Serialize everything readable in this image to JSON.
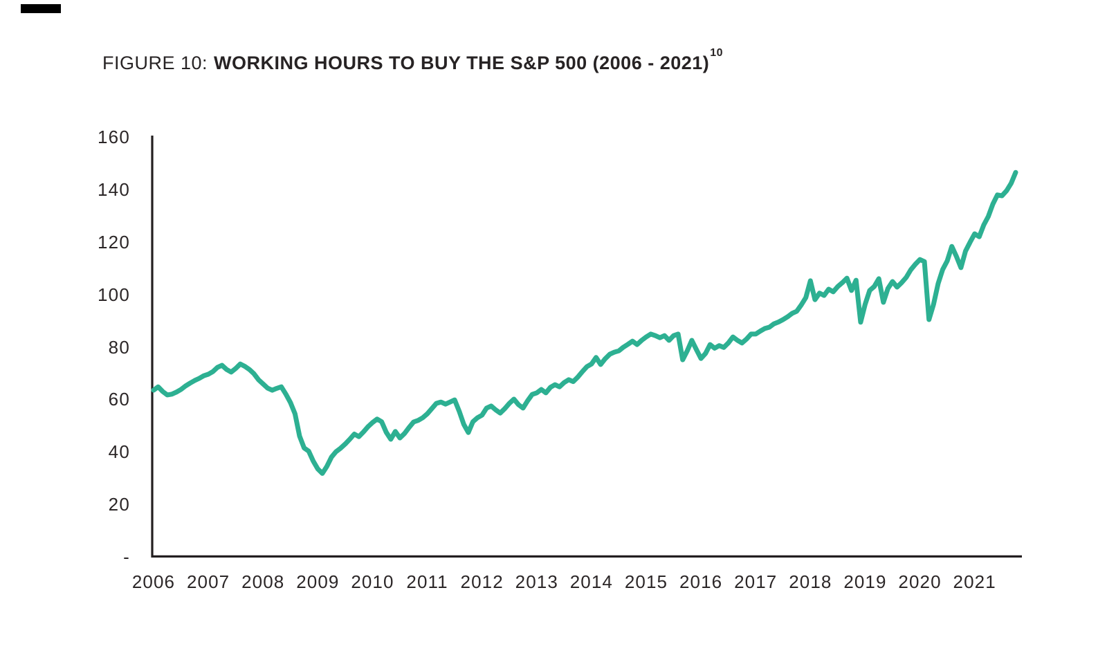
{
  "page": {
    "background": "#ffffff",
    "text_color": "#272324"
  },
  "figure": {
    "label": "FIGURE 10:",
    "title": "WORKING HOURS TO BUY THE S&P 500 (2006 - 2021)",
    "superscript": "10"
  },
  "chart_data": {
    "type": "line",
    "series_name": "Working hours to buy the S&P 500",
    "x_start": "2006-01",
    "x_end": "2021-10",
    "frequency": "monthly",
    "xlabel": "",
    "ylabel": "",
    "ylim": [
      0,
      160
    ],
    "y_tick_step": 20,
    "grid": false,
    "legend": false,
    "line_color": "#2db092",
    "axis_color": "#231f20",
    "y_ticks": [
      {
        "label": "160",
        "value": 160
      },
      {
        "label": "140",
        "value": 140
      },
      {
        "label": "120",
        "value": 120
      },
      {
        "label": "100",
        "value": 100
      },
      {
        "label": "80",
        "value": 80
      },
      {
        "label": "60",
        "value": 60
      },
      {
        "label": "40",
        "value": 40
      },
      {
        "label": "20",
        "value": 20
      },
      {
        "label": "-",
        "value": 0
      }
    ],
    "x_tick_labels": [
      "2006",
      "2007",
      "2008",
      "2009",
      "2010",
      "2011",
      "2012",
      "2013",
      "2014",
      "2015",
      "2016",
      "2017",
      "2018",
      "2019",
      "2020",
      "2021"
    ],
    "values": [
      63.5,
      64.8,
      63.0,
      61.7,
      62.0,
      62.8,
      63.8,
      65.1,
      66.2,
      67.2,
      68.0,
      69.0,
      69.6,
      70.6,
      72.2,
      73.0,
      71.4,
      70.4,
      71.8,
      73.5,
      72.6,
      71.4,
      69.8,
      67.5,
      65.9,
      64.3,
      63.5,
      64.2,
      64.8,
      62.0,
      58.8,
      54.5,
      46.0,
      41.5,
      40.3,
      36.5,
      33.5,
      31.8,
      34.5,
      38.0,
      40.1,
      41.4,
      43.0,
      44.8,
      46.8,
      45.8,
      47.6,
      49.6,
      51.2,
      52.5,
      51.5,
      47.5,
      44.8,
      47.8,
      45.3,
      47.0,
      49.3,
      51.4,
      52.0,
      53.0,
      54.5,
      56.5,
      58.5,
      59.0,
      58.2,
      59.0,
      59.8,
      55.5,
      50.5,
      47.4,
      51.5,
      53.0,
      54.0,
      56.7,
      57.5,
      56.0,
      54.8,
      56.5,
      58.5,
      60.1,
      58.0,
      56.7,
      59.5,
      61.9,
      62.5,
      63.8,
      62.5,
      64.6,
      65.6,
      64.8,
      66.4,
      67.5,
      66.8,
      68.5,
      70.6,
      72.5,
      73.5,
      76.0,
      73.3,
      75.5,
      77.2,
      78.0,
      78.5,
      79.9,
      81.0,
      82.2,
      80.9,
      82.5,
      83.8,
      84.9,
      84.3,
      83.5,
      84.3,
      82.5,
      84.3,
      84.9,
      75.1,
      78.5,
      82.5,
      79.0,
      75.6,
      77.5,
      80.9,
      79.5,
      80.5,
      79.8,
      81.5,
      83.8,
      82.5,
      81.5,
      83.0,
      84.9,
      84.9,
      86.0,
      87.0,
      87.5,
      88.8,
      89.5,
      90.4,
      91.5,
      92.8,
      93.6,
      96.0,
      98.8,
      105.2,
      98.0,
      100.5,
      99.6,
      102.0,
      101.0,
      103.0,
      104.5,
      106.2,
      101.5,
      105.4,
      89.4,
      96.2,
      101.5,
      103.0,
      106.0,
      97.0,
      102.3,
      104.9,
      102.8,
      104.5,
      106.5,
      109.4,
      111.5,
      113.3,
      112.5,
      90.4,
      96.2,
      104.1,
      109.5,
      112.8,
      118.3,
      114.5,
      110.2,
      116.5,
      119.9,
      123.1,
      122.0,
      126.5,
      129.7,
      134.4,
      137.9,
      137.6,
      139.5,
      142.3,
      146.5
    ]
  }
}
